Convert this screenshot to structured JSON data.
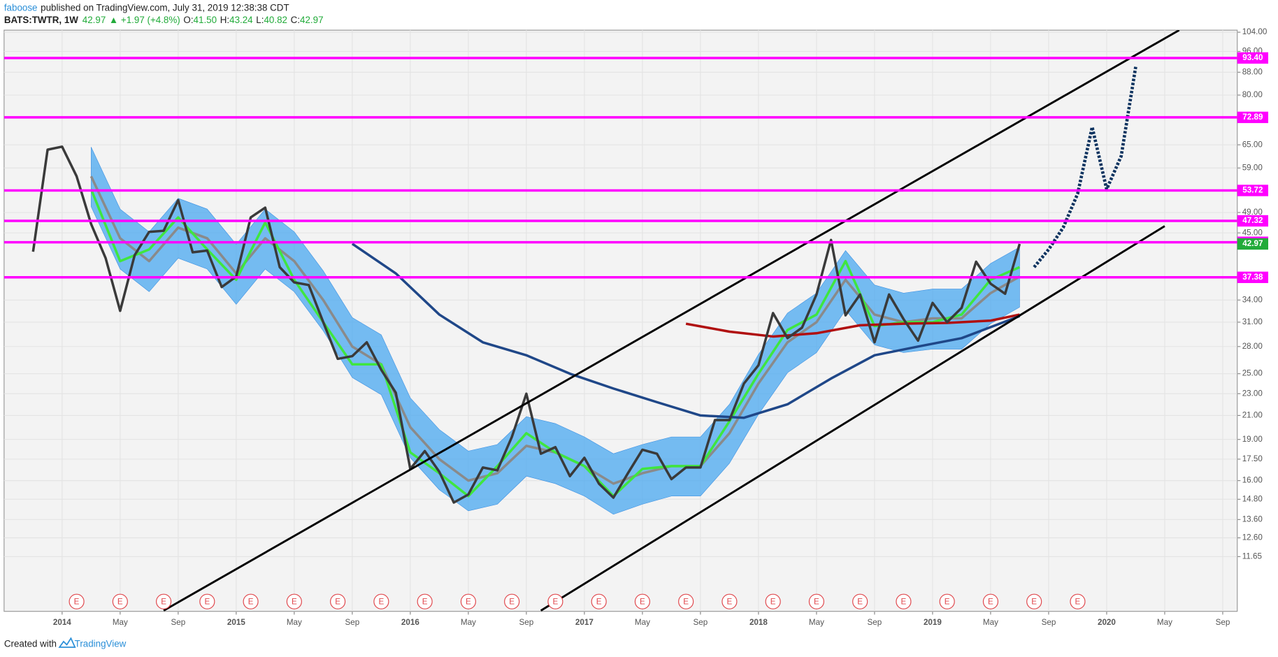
{
  "header": {
    "user": "faboose",
    "published": "published on TradingView.com, July 31, 2019 12:38:38 CDT",
    "symbol": "BATS:TWTR, 1W",
    "price": "42.97",
    "change": "▲ +1.97 (+4.8%)",
    "ohlc": [
      {
        "key": "O:",
        "value": "41.50"
      },
      {
        "key": "H:",
        "value": "43.24"
      },
      {
        "key": "L:",
        "value": "40.82"
      },
      {
        "key": "C:",
        "value": "42.97"
      }
    ]
  },
  "footer": {
    "text": "Created with",
    "brand": "TradingView"
  },
  "chart_data": {
    "type": "line",
    "log_scale": true,
    "grid": true,
    "xlim": [
      "2013-09",
      "2020-10"
    ],
    "ylim": [
      9.27,
      104.9
    ],
    "xticks": [
      {
        "value": "2014-01",
        "label": "2014"
      },
      {
        "value": "2014-05",
        "label": "May"
      },
      {
        "value": "2014-09",
        "label": "Sep"
      },
      {
        "value": "2015-01",
        "label": "2015"
      },
      {
        "value": "2015-05",
        "label": "May"
      },
      {
        "value": "2015-09",
        "label": "Sep"
      },
      {
        "value": "2016-01",
        "label": "2016"
      },
      {
        "value": "2016-05",
        "label": "May"
      },
      {
        "value": "2016-09",
        "label": "Sep"
      },
      {
        "value": "2017-01",
        "label": "2017"
      },
      {
        "value": "2017-05",
        "label": "May"
      },
      {
        "value": "2017-09",
        "label": "Sep"
      },
      {
        "value": "2018-01",
        "label": "2018"
      },
      {
        "value": "2018-05",
        "label": "May"
      },
      {
        "value": "2018-09",
        "label": "Sep"
      },
      {
        "value": "2019-01",
        "label": "2019"
      },
      {
        "value": "2019-05",
        "label": "May"
      },
      {
        "value": "2019-09",
        "label": "Sep"
      },
      {
        "value": "2020-01",
        "label": "2020"
      },
      {
        "value": "2020-05",
        "label": "May"
      },
      {
        "value": "2020-09",
        "label": "Sep"
      }
    ],
    "yticks": [
      {
        "value": 104,
        "label": "104.00"
      },
      {
        "value": 96,
        "label": "96.00"
      },
      {
        "value": 88,
        "label": "88.00"
      },
      {
        "value": 80,
        "label": "80.00"
      },
      {
        "value": 65,
        "label": "65.00"
      },
      {
        "value": 59,
        "label": "59.00"
      },
      {
        "value": 49,
        "label": "49.00"
      },
      {
        "value": 45,
        "label": "45.00"
      },
      {
        "value": 34,
        "label": "34.00"
      },
      {
        "value": 31,
        "label": "31.00"
      },
      {
        "value": 28,
        "label": "28.00"
      },
      {
        "value": 25,
        "label": "25.00"
      },
      {
        "value": 23,
        "label": "23.00"
      },
      {
        "value": 21,
        "label": "21.00"
      },
      {
        "value": 19,
        "label": "19.00"
      },
      {
        "value": 17.5,
        "label": "17.50"
      },
      {
        "value": 16,
        "label": "16.00"
      },
      {
        "value": 14.8,
        "label": "14.80"
      },
      {
        "value": 13.6,
        "label": "13.60"
      },
      {
        "value": 12.6,
        "label": "12.60"
      },
      11.65
    ],
    "band": {
      "color": "#4aa8f0",
      "x": [
        "2014-03",
        "2014-05",
        "2014-07",
        "2014-09",
        "2014-11",
        "2015-01",
        "2015-03",
        "2015-05",
        "2015-07",
        "2015-09",
        "2015-11",
        "2016-01",
        "2016-03",
        "2016-05",
        "2016-07",
        "2016-09",
        "2016-11",
        "2017-01",
        "2017-03",
        "2017-05",
        "2017-07",
        "2017-09",
        "2017-11",
        "2018-01",
        "2018-03",
        "2018-05",
        "2018-07",
        "2018-09",
        "2018-11",
        "2019-01",
        "2019-03",
        "2019-05",
        "2019-07"
      ],
      "upper": [
        64.4,
        49.7,
        45.2,
        52,
        49.7,
        42.9,
        49.7,
        45.2,
        38.4,
        31.6,
        29.4,
        22.6,
        19.8,
        18.1,
        18.6,
        20.9,
        20.3,
        19.2,
        17.9,
        18.6,
        19.2,
        19.2,
        22,
        27.1,
        32.2,
        35,
        41.8,
        36.2,
        35,
        35.6,
        35.6,
        39.6,
        42.4
      ],
      "lower": [
        50.2,
        38.7,
        35.2,
        40.5,
        38.7,
        33.4,
        38.7,
        35.2,
        29.9,
        24.6,
        22.9,
        17.6,
        15.4,
        14.1,
        14.5,
        16.3,
        15.8,
        15,
        13.9,
        14.5,
        15,
        15,
        17.2,
        21.1,
        25.1,
        27.3,
        32.6,
        28.2,
        27.3,
        27.7,
        27.7,
        30.8,
        33
      ]
    },
    "series": [
      {
        "color": "#8a8a8a",
        "x": [
          "2014-03",
          "2014-05",
          "2014-07",
          "2014-09",
          "2014-11",
          "2015-01",
          "2015-03",
          "2015-05",
          "2015-07",
          "2015-09",
          "2015-11",
          "2016-01",
          "2016-03",
          "2016-05",
          "2016-07",
          "2016-09",
          "2016-11",
          "2017-01",
          "2017-03",
          "2017-05",
          "2017-07",
          "2017-09",
          "2017-11",
          "2018-01",
          "2018-03",
          "2018-05",
          "2018-07",
          "2018-09",
          "2018-11",
          "2019-01",
          "2019-03",
          "2019-05",
          "2019-07"
        ],
        "values": [
          57,
          44,
          40,
          46,
          44,
          38,
          44,
          40,
          34,
          28,
          26,
          20,
          17.5,
          16,
          16.5,
          18.5,
          18,
          17,
          15.8,
          16.5,
          17,
          17,
          19.5,
          24,
          28.5,
          31,
          37,
          32,
          31,
          31.5,
          31.5,
          35,
          37.5
        ]
      },
      {
        "color": "#3fe63f",
        "x": [
          "2014-03",
          "2014-05",
          "2014-07",
          "2014-09",
          "2014-11",
          "2015-01",
          "2015-03",
          "2015-05",
          "2015-07",
          "2015-09",
          "2015-11",
          "2016-01",
          "2016-03",
          "2016-05",
          "2016-07",
          "2016-09",
          "2016-11",
          "2017-01",
          "2017-03",
          "2017-05",
          "2017-07",
          "2017-09",
          "2017-11",
          "2018-01",
          "2018-03",
          "2018-05",
          "2018-07",
          "2018-09",
          "2018-11",
          "2019-01",
          "2019-03",
          "2019-05",
          "2019-07"
        ],
        "values": [
          54,
          40,
          42,
          48,
          42,
          37,
          47,
          37,
          31,
          26,
          26,
          18,
          16.5,
          15,
          17,
          19.5,
          18,
          17,
          15,
          16.8,
          17,
          17,
          20.5,
          25,
          30,
          32,
          40,
          30.5,
          31,
          31,
          32,
          37,
          39
        ]
      },
      {
        "color": "#b01010",
        "x": [
          "2017-08",
          "2017-11",
          "2018-02",
          "2018-05",
          "2018-08",
          "2018-11",
          "2019-02",
          "2019-05",
          "2019-07"
        ],
        "values": [
          30.8,
          29.8,
          29.2,
          29.6,
          30.6,
          30.8,
          30.9,
          31.2,
          32
        ]
      },
      {
        "color": "#1f4788",
        "x": [
          "2015-09",
          "2015-12",
          "2016-03",
          "2016-06",
          "2016-09",
          "2016-12",
          "2017-03",
          "2017-06",
          "2017-09",
          "2017-12",
          "2018-03",
          "2018-06",
          "2018-09",
          "2018-12",
          "2019-03",
          "2019-07"
        ],
        "values": [
          43,
          38,
          32,
          28.5,
          27,
          25,
          23.5,
          22.2,
          21,
          20.8,
          22,
          24.5,
          27,
          28,
          29,
          31.8
        ]
      },
      {
        "color": "#3a3a3a",
        "x": [
          "2013-11",
          "2013-12",
          "2014-01",
          "2014-02",
          "2014-03",
          "2014-04",
          "2014-05",
          "2014-06",
          "2014-07",
          "2014-08",
          "2014-09",
          "2014-10",
          "2014-11",
          "2014-12",
          "2015-01",
          "2015-02",
          "2015-03",
          "2015-04",
          "2015-05",
          "2015-06",
          "2015-07",
          "2015-08",
          "2015-09",
          "2015-10",
          "2015-11",
          "2015-12",
          "2016-01",
          "2016-02",
          "2016-03",
          "2016-04",
          "2016-05",
          "2016-06",
          "2016-07",
          "2016-08",
          "2016-09",
          "2016-10",
          "2016-11",
          "2016-12",
          "2017-01",
          "2017-02",
          "2017-03",
          "2017-04",
          "2017-05",
          "2017-06",
          "2017-07",
          "2017-08",
          "2017-09",
          "2017-10",
          "2017-11",
          "2017-12",
          "2018-01",
          "2018-02",
          "2018-03",
          "2018-04",
          "2018-05",
          "2018-06",
          "2018-07",
          "2018-08",
          "2018-09",
          "2018-10",
          "2018-11",
          "2018-12",
          "2019-01",
          "2019-02",
          "2019-03",
          "2019-04",
          "2019-05",
          "2019-06",
          "2019-07"
        ],
        "values": [
          41.6,
          63.7,
          64.5,
          57,
          46.7,
          40.5,
          32.5,
          41,
          45.2,
          45.4,
          51.6,
          41.5,
          41.8,
          35.9,
          37.5,
          48,
          50,
          39,
          36.6,
          36.2,
          31,
          26.6,
          26.9,
          28.5,
          25.4,
          23.1,
          16.8,
          18.1,
          16.6,
          14.6,
          15.1,
          16.9,
          16.7,
          19.2,
          23,
          17.9,
          18.4,
          16.3,
          17.6,
          15.8,
          14.9,
          16.5,
          18.2,
          17.9,
          16.1,
          16.9,
          16.9,
          20.6,
          20.6,
          24,
          25.9,
          32.2,
          29,
          30.3,
          34.8,
          43.7,
          31.9,
          34.8,
          28.5,
          34.8,
          31.4,
          28.7,
          33.6,
          31,
          32.9,
          39.9,
          36.4,
          34.9,
          42.97
        ]
      },
      {
        "color": "#0f3460",
        "style": "dashed",
        "x": [
          "2019-08",
          "2019-09",
          "2019-10",
          "2019-11",
          "2019-12",
          "2020-01",
          "2020-02",
          "2020-03"
        ],
        "values": [
          39,
          42,
          46,
          53,
          70,
          54,
          62,
          90
        ]
      }
    ],
    "trendlines": [
      {
        "color": "#000000",
        "x": [
          "2014-08",
          "2020-06"
        ],
        "values": [
          9.3,
          104.9
        ]
      },
      {
        "color": "#000000",
        "x": [
          "2016-10",
          "2020-05"
        ],
        "values": [
          9.3,
          46.3
        ]
      }
    ],
    "levels": {
      "color": "#ff00ff",
      "items": [
        {
          "value": 93.4,
          "label": "93.40"
        },
        72.89,
        53.72,
        47.32,
        43.27,
        37.38
      ]
    },
    "last_price": {
      "color": "#22ab3a",
      "value": 42.97
    },
    "events": {
      "label": "E",
      "color": "#e0474c",
      "x": [
        "2014-02",
        "2014-05",
        "2014-08",
        "2014-11",
        "2015-02",
        "2015-05",
        "2015-08",
        "2015-11",
        "2016-02",
        "2016-05",
        "2016-08",
        "2016-11",
        "2017-02",
        "2017-05",
        "2017-08",
        "2017-11",
        "2018-02",
        "2018-05",
        "2018-08",
        "2018-11",
        "2019-02",
        "2019-05",
        "2019-08",
        "2019-11"
      ]
    }
  }
}
